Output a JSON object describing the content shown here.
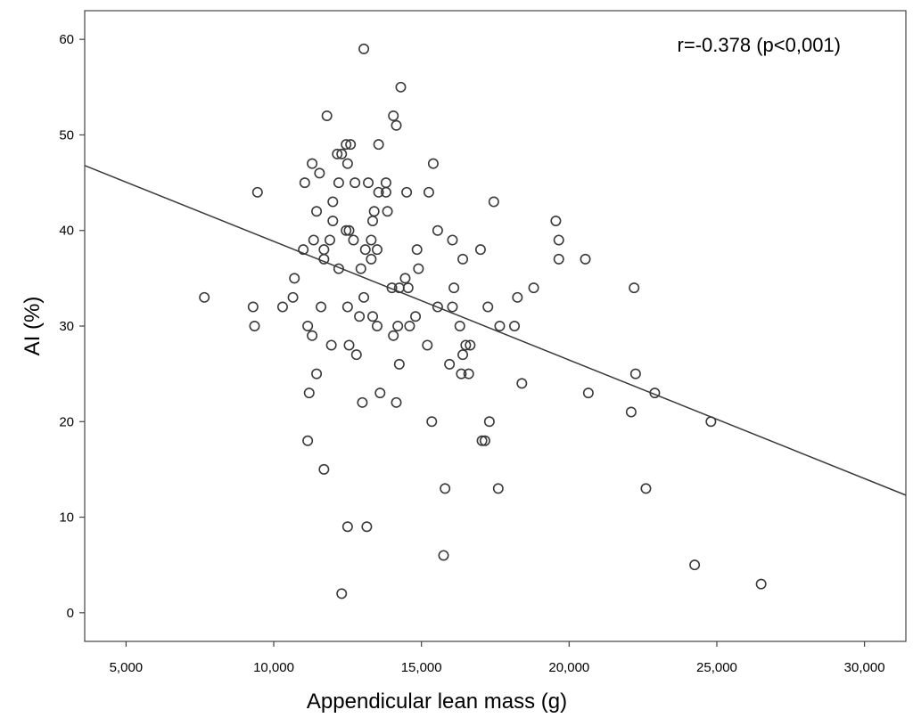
{
  "chart_data": {
    "type": "scatter",
    "xlabel": "Appendicular lean mass (g)",
    "ylabel": "AI (%)",
    "annotation": "r=-0.378 (p<0,001)",
    "xlim": [
      3600,
      31400
    ],
    "ylim": [
      -3,
      63
    ],
    "x_ticks": [
      5000,
      10000,
      15000,
      20000,
      25000,
      30000
    ],
    "x_tick_labels": [
      "5,000",
      "10,000",
      "15,000",
      "20,000",
      "25,000",
      "30,000"
    ],
    "y_ticks": [
      0,
      10,
      20,
      30,
      40,
      50,
      60
    ],
    "y_tick_labels": [
      "0",
      "10",
      "20",
      "30",
      "40",
      "50",
      "60"
    ],
    "grid": false,
    "regression_line": {
      "x": [
        3600,
        31400
      ],
      "y": [
        46.8,
        12.3
      ]
    },
    "points": [
      [
        7650,
        33
      ],
      [
        9300,
        32
      ],
      [
        9350,
        30
      ],
      [
        9450,
        44
      ],
      [
        10300,
        32
      ],
      [
        10650,
        33
      ],
      [
        10700,
        35
      ],
      [
        11000,
        38
      ],
      [
        11050,
        45
      ],
      [
        11150,
        30
      ],
      [
        11150,
        18
      ],
      [
        11200,
        23
      ],
      [
        11300,
        47
      ],
      [
        11300,
        29
      ],
      [
        11350,
        39
      ],
      [
        11450,
        42
      ],
      [
        11450,
        25
      ],
      [
        11550,
        46
      ],
      [
        11600,
        32
      ],
      [
        11700,
        38
      ],
      [
        11700,
        37
      ],
      [
        11700,
        15
      ],
      [
        11800,
        52
      ],
      [
        11900,
        39
      ],
      [
        11950,
        28
      ],
      [
        12000,
        43
      ],
      [
        12000,
        41
      ],
      [
        12150,
        48
      ],
      [
        12200,
        45
      ],
      [
        12200,
        36
      ],
      [
        12300,
        48
      ],
      [
        12300,
        2
      ],
      [
        12450,
        49
      ],
      [
        12450,
        40
      ],
      [
        12500,
        47
      ],
      [
        12500,
        32
      ],
      [
        12500,
        9
      ],
      [
        12550,
        40
      ],
      [
        12550,
        28
      ],
      [
        12600,
        49
      ],
      [
        12700,
        39
      ],
      [
        12750,
        45
      ],
      [
        12800,
        27
      ],
      [
        12900,
        31
      ],
      [
        12950,
        36
      ],
      [
        13000,
        22
      ],
      [
        13050,
        59
      ],
      [
        13050,
        33
      ],
      [
        13100,
        38
      ],
      [
        13150,
        9
      ],
      [
        13200,
        45
      ],
      [
        13300,
        39
      ],
      [
        13300,
        37
      ],
      [
        13350,
        41
      ],
      [
        13350,
        31
      ],
      [
        13400,
        42
      ],
      [
        13500,
        38
      ],
      [
        13500,
        30
      ],
      [
        13550,
        49
      ],
      [
        13550,
        44
      ],
      [
        13600,
        23
      ],
      [
        13800,
        44
      ],
      [
        13800,
        45
      ],
      [
        13850,
        42
      ],
      [
        14000,
        34
      ],
      [
        14050,
        52
      ],
      [
        14050,
        29
      ],
      [
        14150,
        51
      ],
      [
        14150,
        22
      ],
      [
        14200,
        30
      ],
      [
        14250,
        34
      ],
      [
        14250,
        26
      ],
      [
        14300,
        55
      ],
      [
        14450,
        35
      ],
      [
        14500,
        44
      ],
      [
        14550,
        34
      ],
      [
        14600,
        30
      ],
      [
        14800,
        31
      ],
      [
        14850,
        38
      ],
      [
        14900,
        36
      ],
      [
        15200,
        28
      ],
      [
        15250,
        44
      ],
      [
        15350,
        20
      ],
      [
        15400,
        47
      ],
      [
        15550,
        40
      ],
      [
        15550,
        32
      ],
      [
        15750,
        6
      ],
      [
        15800,
        13
      ],
      [
        15950,
        26
      ],
      [
        16050,
        39
      ],
      [
        16050,
        32
      ],
      [
        16100,
        34
      ],
      [
        16300,
        30
      ],
      [
        16350,
        25
      ],
      [
        16400,
        37
      ],
      [
        16400,
        27
      ],
      [
        16500,
        28
      ],
      [
        16600,
        25
      ],
      [
        16650,
        28
      ],
      [
        17000,
        38
      ],
      [
        17050,
        18
      ],
      [
        17150,
        18
      ],
      [
        17250,
        32
      ],
      [
        17300,
        20
      ],
      [
        17450,
        43
      ],
      [
        17600,
        13
      ],
      [
        17650,
        30
      ],
      [
        18150,
        30
      ],
      [
        18250,
        33
      ],
      [
        18400,
        24
      ],
      [
        18800,
        34
      ],
      [
        19550,
        41
      ],
      [
        19650,
        39
      ],
      [
        19650,
        37
      ],
      [
        20550,
        37
      ],
      [
        20650,
        23
      ],
      [
        22100,
        21
      ],
      [
        22200,
        34
      ],
      [
        22250,
        25
      ],
      [
        22600,
        13
      ],
      [
        22900,
        23
      ],
      [
        24250,
        5
      ],
      [
        24800,
        20
      ],
      [
        26500,
        3
      ]
    ]
  }
}
